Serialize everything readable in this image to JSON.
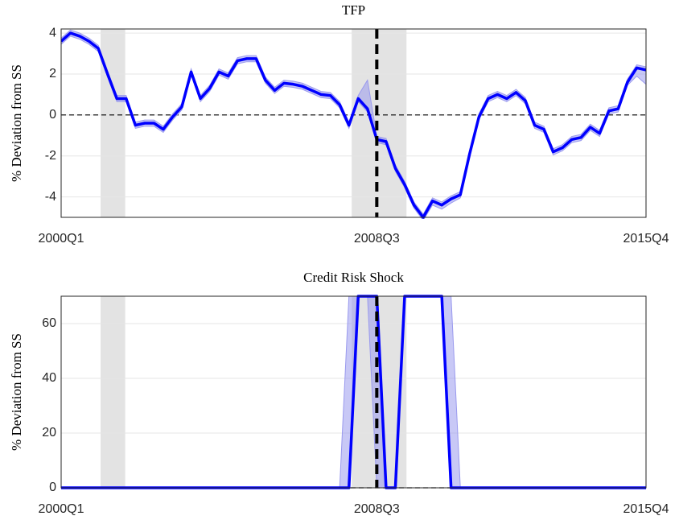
{
  "chart_data": [
    {
      "type": "line",
      "title": "TFP",
      "ylabel": "% Deviation from SS",
      "categories": [
        "2000Q1",
        null,
        null,
        null,
        null,
        null,
        null,
        null,
        null,
        null,
        null,
        null,
        null,
        null,
        null,
        null,
        null,
        null,
        null,
        null,
        null,
        null,
        null,
        null,
        null,
        null,
        null,
        null,
        null,
        null,
        null,
        null,
        null,
        null,
        "2008Q3",
        null,
        null,
        null,
        null,
        null,
        null,
        null,
        null,
        null,
        null,
        null,
        null,
        null,
        null,
        null,
        null,
        null,
        null,
        null,
        null,
        null,
        null,
        null,
        null,
        null,
        null,
        null,
        null,
        "2015Q4"
      ],
      "series": [
        {
          "color": "#0000ff",
          "band_color": "#9a9aee",
          "values": [
            3.6,
            4.0,
            3.85,
            3.6,
            3.25,
            2.0,
            0.8,
            0.8,
            -0.5,
            -0.4,
            -0.4,
            -0.7,
            -0.1,
            0.4,
            2.1,
            0.8,
            1.3,
            2.1,
            1.9,
            2.65,
            2.75,
            2.75,
            1.7,
            1.2,
            1.55,
            1.5,
            1.4,
            1.2,
            1.0,
            0.95,
            0.5,
            -0.5,
            0.8,
            0.3,
            -1.2,
            -1.3,
            -2.6,
            -3.4,
            -4.4,
            -5.0,
            -4.2,
            -4.4,
            -4.1,
            -3.9,
            -1.9,
            -0.1,
            0.8,
            1.0,
            0.8,
            1.1,
            0.7,
            -0.5,
            -0.7,
            -1.8,
            -1.6,
            -1.2,
            -1.1,
            -0.6,
            -0.9,
            0.2,
            0.3,
            1.6,
            2.3,
            2.2
          ],
          "band_lower": [
            3.45,
            3.85,
            3.7,
            3.45,
            3.1,
            1.85,
            0.65,
            0.65,
            -0.65,
            -0.55,
            -0.55,
            -0.85,
            -0.25,
            0.25,
            1.95,
            0.65,
            1.15,
            1.95,
            1.75,
            2.5,
            2.6,
            2.6,
            1.55,
            1.05,
            1.4,
            1.35,
            1.25,
            1.05,
            0.85,
            0.8,
            0.35,
            -0.65,
            0.65,
            0.15,
            -1.35,
            -1.45,
            -2.75,
            -3.55,
            -4.55,
            -5.15,
            -4.4,
            -4.6,
            -4.3,
            -4.05,
            -2.05,
            -0.25,
            0.65,
            0.85,
            0.65,
            0.95,
            0.55,
            -0.65,
            -0.85,
            -1.95,
            -1.75,
            -1.35,
            -1.25,
            -0.75,
            -1.05,
            0.05,
            0.15,
            1.45,
            1.9,
            1.5
          ],
          "band_upper": [
            3.75,
            4.15,
            4.0,
            3.75,
            3.4,
            2.15,
            0.95,
            0.95,
            -0.35,
            -0.25,
            -0.25,
            -0.55,
            0.05,
            0.55,
            2.25,
            0.95,
            1.45,
            2.25,
            2.05,
            2.8,
            2.9,
            2.9,
            1.85,
            1.35,
            1.7,
            1.65,
            1.55,
            1.35,
            1.15,
            1.1,
            0.65,
            -0.35,
            0.95,
            1.7,
            -1.05,
            -1.15,
            -2.45,
            -3.25,
            -4.25,
            -4.85,
            -4.05,
            -4.25,
            -3.95,
            -3.75,
            -1.75,
            0.05,
            0.95,
            1.15,
            0.95,
            1.25,
            0.85,
            -0.35,
            -0.55,
            -1.65,
            -1.45,
            -1.05,
            -0.95,
            -0.45,
            -0.75,
            0.35,
            0.45,
            1.75,
            2.45,
            2.35
          ]
        }
      ],
      "ylim": [
        -5.0,
        4.2
      ],
      "yticks": [
        -4,
        -2,
        0,
        2,
        4
      ],
      "grid": true,
      "shaded_regions": [
        [
          4.25,
          6.9
        ],
        [
          31.3,
          37.2
        ]
      ],
      "vline": 34,
      "hline": 0
    },
    {
      "type": "line",
      "title": "Credit Risk Shock",
      "ylabel": "% Deviation from SS",
      "categories": [
        "2000Q1",
        null,
        null,
        null,
        null,
        null,
        null,
        null,
        null,
        null,
        null,
        null,
        null,
        null,
        null,
        null,
        null,
        null,
        null,
        null,
        null,
        null,
        null,
        null,
        null,
        null,
        null,
        null,
        null,
        null,
        null,
        null,
        null,
        null,
        "2008Q3",
        null,
        null,
        null,
        null,
        null,
        null,
        null,
        null,
        null,
        null,
        null,
        null,
        null,
        null,
        null,
        null,
        null,
        null,
        null,
        null,
        null,
        null,
        null,
        null,
        null,
        null,
        null,
        null,
        "2015Q4"
      ],
      "series": [
        {
          "color": "#0000ff",
          "band_color": "#9a9aee",
          "values": [
            0,
            0,
            0,
            0,
            0,
            0,
            0,
            0,
            0,
            0,
            0,
            0,
            0,
            0,
            0,
            0,
            0,
            0,
            0,
            0,
            0,
            0,
            0,
            0,
            0,
            0,
            0,
            0,
            0,
            0,
            0,
            0,
            70,
            70,
            70,
            0,
            0,
            70,
            70,
            70,
            70,
            70,
            0,
            0,
            0,
            0,
            0,
            0,
            0,
            0,
            0,
            0,
            0,
            0,
            0,
            0,
            0,
            0,
            0,
            0,
            0,
            0,
            0,
            0
          ],
          "band_lower": [
            0,
            0,
            0,
            0,
            0,
            0,
            0,
            0,
            0,
            0,
            0,
            0,
            0,
            0,
            0,
            0,
            0,
            0,
            0,
            0,
            0,
            0,
            0,
            0,
            0,
            0,
            0,
            0,
            0,
            0,
            0,
            0,
            70,
            70,
            0,
            0,
            0,
            70,
            70,
            70,
            70,
            70,
            0,
            0,
            0,
            0,
            0,
            0,
            0,
            0,
            0,
            0,
            0,
            0,
            0,
            0,
            0,
            0,
            0,
            0,
            0,
            0,
            0,
            0
          ],
          "band_upper": [
            0,
            0,
            0,
            0,
            0,
            0,
            0,
            0,
            0,
            0,
            0,
            0,
            0,
            0,
            0,
            0,
            0,
            0,
            0,
            0,
            0,
            0,
            0,
            0,
            0,
            0,
            0,
            0,
            0,
            0,
            0,
            70,
            70,
            70,
            70,
            0,
            0,
            70,
            70,
            70,
            70,
            70,
            70,
            0,
            0,
            0,
            0,
            0,
            0,
            0,
            0,
            0,
            0,
            0,
            0,
            0,
            0,
            0,
            0,
            0,
            0,
            0,
            0,
            0
          ]
        }
      ],
      "ylim": [
        0,
        70
      ],
      "yticks": [
        0,
        20,
        40,
        60
      ],
      "grid": true,
      "shaded_regions": [
        [
          4.25,
          6.9
        ],
        [
          31.3,
          37.2
        ]
      ],
      "vline": 34,
      "hline": 0
    }
  ]
}
